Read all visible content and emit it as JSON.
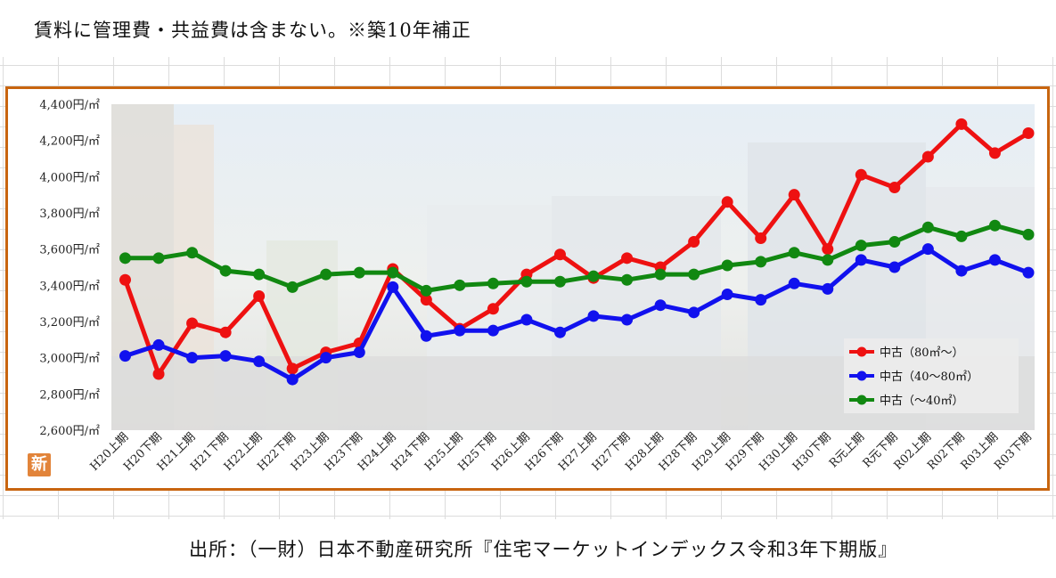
{
  "header_note": "賃料に管理費・共益費は含まない。※築10年補正",
  "source_text": "出所：（一財）日本不動産研究所『住宅マーケットインデックス令和3年下期版』",
  "badge_text": "新",
  "colors": {
    "frame": "#c8650f",
    "red": "#ee1111",
    "blue": "#1111ee",
    "green": "#118811"
  },
  "chart_data": {
    "type": "line",
    "categories": [
      "H20上期",
      "H20下期",
      "H21上期",
      "H21下期",
      "H22上期",
      "H22下期",
      "H23上期",
      "H23下期",
      "H24上期",
      "H24下期",
      "H25上期",
      "H25下期",
      "H26上期",
      "H26下期",
      "H27上期",
      "H27下期",
      "H28上期",
      "H28下期",
      "H29上期",
      "H29下期",
      "H30上期",
      "H30下期",
      "R元上期",
      "R元下期",
      "R02上期",
      "R02下期",
      "R03上期",
      "R03下期"
    ],
    "ylim": [
      2600,
      4400
    ],
    "yticks": [
      "2,600円/㎡",
      "2,800円/㎡",
      "3,000円/㎡",
      "3,200円/㎡",
      "3,400円/㎡",
      "3,600円/㎡",
      "3,800円/㎡",
      "4,000円/㎡",
      "4,200円/㎡",
      "4,400円/㎡"
    ],
    "legend_position": "lower-right",
    "series": [
      {
        "name": "中古（80㎡～）",
        "color": "#ee1111",
        "values": [
          3430,
          2910,
          3190,
          3140,
          3340,
          2940,
          3030,
          3080,
          3490,
          3320,
          3160,
          3270,
          3460,
          3570,
          3440,
          3550,
          3500,
          3640,
          3860,
          3660,
          3900,
          3600,
          4010,
          3940,
          4110,
          4290,
          4130,
          4240
        ]
      },
      {
        "name": "中古（40～80㎡）",
        "color": "#1111ee",
        "values": [
          3010,
          3070,
          3000,
          3010,
          2980,
          2880,
          3000,
          3030,
          3390,
          3120,
          3150,
          3150,
          3210,
          3140,
          3230,
          3210,
          3290,
          3250,
          3350,
          3320,
          3410,
          3380,
          3540,
          3500,
          3600,
          3480,
          3540,
          3470
        ]
      },
      {
        "name": "中古（～40㎡）",
        "color": "#118811",
        "values": [
          3550,
          3550,
          3580,
          3480,
          3460,
          3390,
          3460,
          3470,
          3470,
          3370,
          3400,
          3410,
          3420,
          3420,
          3450,
          3430,
          3460,
          3460,
          3510,
          3530,
          3580,
          3540,
          3620,
          3640,
          3720,
          3670,
          3730,
          3680
        ]
      }
    ]
  }
}
